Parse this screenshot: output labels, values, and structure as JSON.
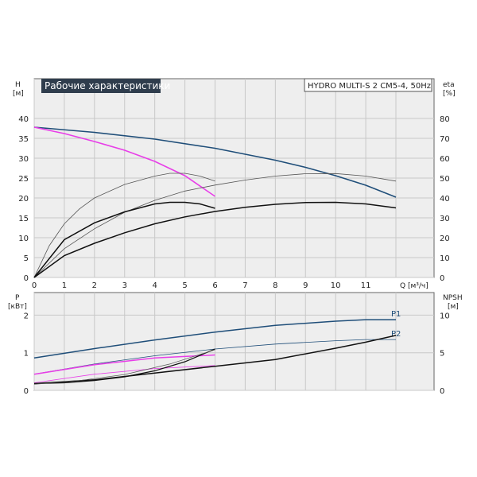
{
  "chart_data": [
    {
      "type": "line",
      "title": "Рабочие характеристики",
      "model": "HYDRO MULTI-S 2 CM5-4, 50Hz",
      "left_axis": {
        "label_top": "H",
        "label_unit": "[м]",
        "range": [
          0,
          40
        ],
        "ticks": [
          0,
          5,
          10,
          15,
          20,
          25,
          30,
          35,
          40
        ]
      },
      "right_axis": {
        "label_top": "eta",
        "label_unit": "[%]",
        "range": [
          0,
          80
        ],
        "ticks": [
          0,
          10,
          20,
          30,
          40,
          50,
          60,
          70,
          80
        ]
      },
      "x_axis": {
        "label": "Q [м³/ч]",
        "range": [
          0,
          12
        ],
        "ticks": [
          0,
          1,
          2,
          3,
          4,
          5,
          6,
          7,
          8,
          9,
          10,
          11
        ]
      },
      "grid": true,
      "series": [
        {
          "name": "",
          "axis": "left",
          "color": "#1f4e79",
          "width": 1.6,
          "points": [
            [
              0,
              37.8
            ],
            [
              2,
              36.5
            ],
            [
              4,
              34.8
            ],
            [
              6,
              32.5
            ],
            [
              8,
              29.5
            ],
            [
              9,
              27.7
            ],
            [
              10,
              25.6
            ],
            [
              11,
              23.2
            ],
            [
              12,
              20.2
            ]
          ]
        },
        {
          "name": "",
          "axis": "left",
          "color": "#e83ee8",
          "width": 1.6,
          "points": [
            [
              0,
              37.8
            ],
            [
              1,
              36.2
            ],
            [
              2,
              34.2
            ],
            [
              3,
              32.0
            ],
            [
              4,
              29.2
            ],
            [
              5,
              25.6
            ],
            [
              6,
              20.4
            ]
          ]
        },
        {
          "name": "",
          "axis": "right",
          "color": "#555555",
          "width": 0.8,
          "points": [
            [
              0,
              0
            ],
            [
              0.5,
              16
            ],
            [
              1,
              27
            ],
            [
              1.5,
              34.5
            ],
            [
              2,
              40
            ],
            [
              3,
              46.8
            ],
            [
              4,
              51
            ],
            [
              4.5,
              52.4
            ],
            [
              5,
              52.4
            ],
            [
              5.5,
              51
            ],
            [
              6,
              48.5
            ]
          ]
        },
        {
          "name": "",
          "axis": "right",
          "color": "#555555",
          "width": 0.8,
          "points": [
            [
              0,
              0
            ],
            [
              1,
              14.5
            ],
            [
              2,
              24.5
            ],
            [
              3,
              32.8
            ],
            [
              4,
              38.8
            ],
            [
              5,
              43.5
            ],
            [
              6,
              46.5
            ],
            [
              7,
              49
            ],
            [
              8,
              51
            ],
            [
              9,
              52.2
            ],
            [
              10,
              52.3
            ],
            [
              11,
              51
            ],
            [
              12,
              48.5
            ]
          ]
        },
        {
          "name": "",
          "axis": "right",
          "color": "#111111",
          "width": 1.5,
          "points": [
            [
              0,
              0
            ],
            [
              1,
              19
            ],
            [
              2,
              27.5
            ],
            [
              3,
              33
            ],
            [
              4,
              37
            ],
            [
              4.5,
              37.8
            ],
            [
              5,
              37.8
            ],
            [
              5.5,
              37
            ],
            [
              6,
              34.8
            ]
          ]
        },
        {
          "name": "",
          "axis": "right",
          "color": "#111111",
          "width": 1.5,
          "points": [
            [
              0,
              0
            ],
            [
              1,
              11
            ],
            [
              2,
              17.2
            ],
            [
              3,
              22.5
            ],
            [
              4,
              27
            ],
            [
              5,
              30.5
            ],
            [
              6,
              33.2
            ],
            [
              7,
              35.3
            ],
            [
              8,
              36.8
            ],
            [
              9,
              37.7
            ],
            [
              10,
              37.8
            ],
            [
              11,
              37
            ],
            [
              12,
              35
            ]
          ]
        }
      ]
    },
    {
      "type": "line",
      "left_axis": {
        "label_top": "P",
        "label_unit": "[кВт]",
        "range": [
          0,
          2.6
        ],
        "ticks": [
          0,
          1,
          2
        ]
      },
      "right_axis": {
        "label_top": "NPSH",
        "label_unit": "[м]",
        "range": [
          0,
          13
        ],
        "ticks": [
          0,
          5,
          10
        ]
      },
      "x_axis": {
        "range": [
          0,
          12
        ]
      },
      "grid": true,
      "series": [
        {
          "name": "P1",
          "axis": "left",
          "color": "#1f4e79",
          "width": 1.5,
          "label": "P1",
          "points": [
            [
              0,
              0.86
            ],
            [
              2,
              1.11
            ],
            [
              4,
              1.34
            ],
            [
              6,
              1.55
            ],
            [
              8,
              1.73
            ],
            [
              10,
              1.84
            ],
            [
              11,
              1.88
            ],
            [
              12,
              1.88
            ]
          ]
        },
        {
          "name": "P2",
          "axis": "left",
          "color": "#1f4e79",
          "width": 0.8,
          "label": "P2",
          "points": [
            [
              0,
              0.43
            ],
            [
              2,
              0.7
            ],
            [
              4,
              0.92
            ],
            [
              6,
              1.1
            ],
            [
              8,
              1.23
            ],
            [
              10,
              1.32
            ],
            [
              11,
              1.35
            ],
            [
              12,
              1.35
            ]
          ]
        },
        {
          "name": "",
          "axis": "left",
          "color": "#e83ee8",
          "width": 1.5,
          "points": [
            [
              0,
              0.43
            ],
            [
              2,
              0.68
            ],
            [
              4,
              0.86
            ],
            [
              6,
              0.94
            ]
          ]
        },
        {
          "name": "",
          "axis": "left",
          "color": "#e83ee8",
          "width": 0.8,
          "points": [
            [
              0,
              0.2
            ],
            [
              2,
              0.43
            ],
            [
              4,
              0.58
            ],
            [
              6,
              0.66
            ]
          ]
        },
        {
          "name": "",
          "axis": "right",
          "color": "#111111",
          "width": 1.5,
          "points": [
            [
              0,
              0.9
            ],
            [
              2,
              1.4
            ],
            [
              4,
              2.3
            ],
            [
              6,
              3.2
            ],
            [
              8,
              4.1
            ],
            [
              10,
              5.6
            ],
            [
              11,
              6.4
            ],
            [
              12,
              7.3
            ]
          ]
        },
        {
          "name": "",
          "axis": "right",
          "color": "#111111",
          "width": 1.2,
          "points": [
            [
              0,
              0.9
            ],
            [
              1,
              1.0
            ],
            [
              2,
              1.3
            ],
            [
              3,
              1.8
            ],
            [
              4,
              2.6
            ],
            [
              5,
              3.8
            ],
            [
              6,
              5.5
            ]
          ]
        },
        {
          "name": "",
          "axis": "left",
          "color": "#555555",
          "width": 0.7,
          "points": [
            [
              0,
              0.16
            ],
            [
              1.5,
              0.26
            ],
            [
              3,
              0.42
            ],
            [
              4.5,
              0.7
            ],
            [
              6,
              1.08
            ]
          ]
        }
      ]
    }
  ]
}
